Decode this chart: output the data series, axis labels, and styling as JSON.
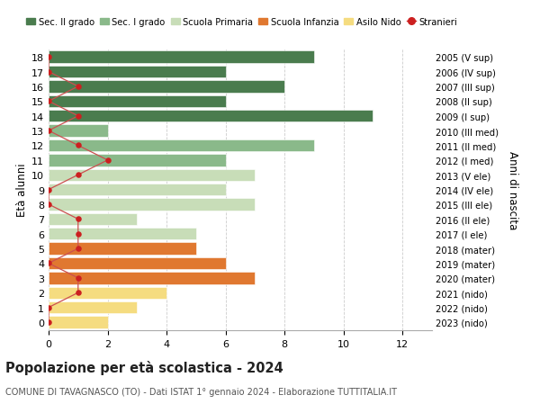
{
  "ages": [
    18,
    17,
    16,
    15,
    14,
    13,
    12,
    11,
    10,
    9,
    8,
    7,
    6,
    5,
    4,
    3,
    2,
    1,
    0
  ],
  "right_labels": [
    "2005 (V sup)",
    "2006 (IV sup)",
    "2007 (III sup)",
    "2008 (II sup)",
    "2009 (I sup)",
    "2010 (III med)",
    "2011 (II med)",
    "2012 (I med)",
    "2013 (V ele)",
    "2014 (IV ele)",
    "2015 (III ele)",
    "2016 (II ele)",
    "2017 (I ele)",
    "2018 (mater)",
    "2019 (mater)",
    "2020 (mater)",
    "2021 (nido)",
    "2022 (nido)",
    "2023 (nido)"
  ],
  "bar_values": [
    9,
    6,
    8,
    6,
    11,
    2,
    9,
    6,
    7,
    6,
    7,
    3,
    5,
    5,
    6,
    7,
    4,
    3,
    2
  ],
  "stranieri_values": [
    0,
    0,
    1,
    0,
    1,
    0,
    1,
    2,
    1,
    0,
    0,
    1,
    1,
    1,
    0,
    1,
    1,
    0,
    0
  ],
  "bar_colors": [
    "#4a7c4e",
    "#4a7c4e",
    "#4a7c4e",
    "#4a7c4e",
    "#4a7c4e",
    "#8ab98a",
    "#8ab98a",
    "#8ab98a",
    "#c8ddb8",
    "#c8ddb8",
    "#c8ddb8",
    "#c8ddb8",
    "#c8ddb8",
    "#e07830",
    "#e07830",
    "#e07830",
    "#f5dc80",
    "#f5dc80",
    "#f5dc80"
  ],
  "stranieri_color": "#cc2020",
  "stranieri_line_color": "#cc5050",
  "title": "Popolazione per età scolastica - 2024",
  "subtitle": "COMUNE DI TAVAGNASCO (TO) - Dati ISTAT 1° gennaio 2024 - Elaborazione TUTTITALIA.IT",
  "ylabel_left": "Età alunni",
  "ylabel_right": "Anni di nascita",
  "xlim": [
    0,
    13
  ],
  "xticks": [
    0,
    2,
    4,
    6,
    8,
    10,
    12
  ],
  "ylim_min": -0.55,
  "ylim_max": 18.55,
  "bar_height": 0.82,
  "bg_color": "#ffffff",
  "grid_color": "#cccccc",
  "legend_items": [
    {
      "label": "Sec. II grado",
      "color": "#4a7c4e",
      "type": "patch"
    },
    {
      "label": "Sec. I grado",
      "color": "#8ab98a",
      "type": "patch"
    },
    {
      "label": "Scuola Primaria",
      "color": "#c8ddb8",
      "type": "patch"
    },
    {
      "label": "Scuola Infanzia",
      "color": "#e07830",
      "type": "patch"
    },
    {
      "label": "Asilo Nido",
      "color": "#f5dc80",
      "type": "patch"
    },
    {
      "label": "Stranieri",
      "color": "#cc2020",
      "type": "line"
    }
  ]
}
